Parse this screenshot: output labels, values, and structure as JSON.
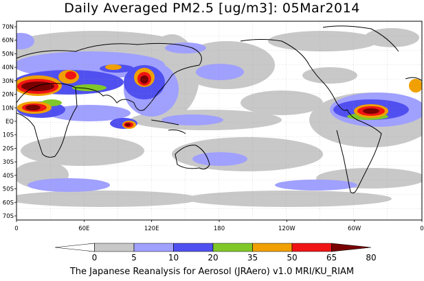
{
  "title": "Daily Averaged PM2.5 [ug/m3]: 05Mar2014",
  "footer": "The Japanese Reanalysis for Aerosol (JRAero) v1.0 MRI/KU_RIAM",
  "lat_labels": [
    "70N",
    "60N",
    "50N",
    "40N",
    "30N",
    "20N",
    "10N",
    "EQ",
    "10S",
    "20S",
    "30S",
    "40S",
    "50S",
    "60S",
    "70S"
  ],
  "lon_labels": [
    "0",
    "60E",
    "120E",
    "180",
    "120W",
    "60W",
    "0"
  ],
  "colorbar": {
    "labels": [
      "0",
      "5",
      "10",
      "20",
      "35",
      "50",
      "65",
      "80"
    ],
    "colors": [
      "#ffffff",
      "#c8c8c8",
      "#a0a0ff",
      "#5050f0",
      "#80c828",
      "#f0a000",
      "#f01414",
      "#780000"
    ]
  }
}
